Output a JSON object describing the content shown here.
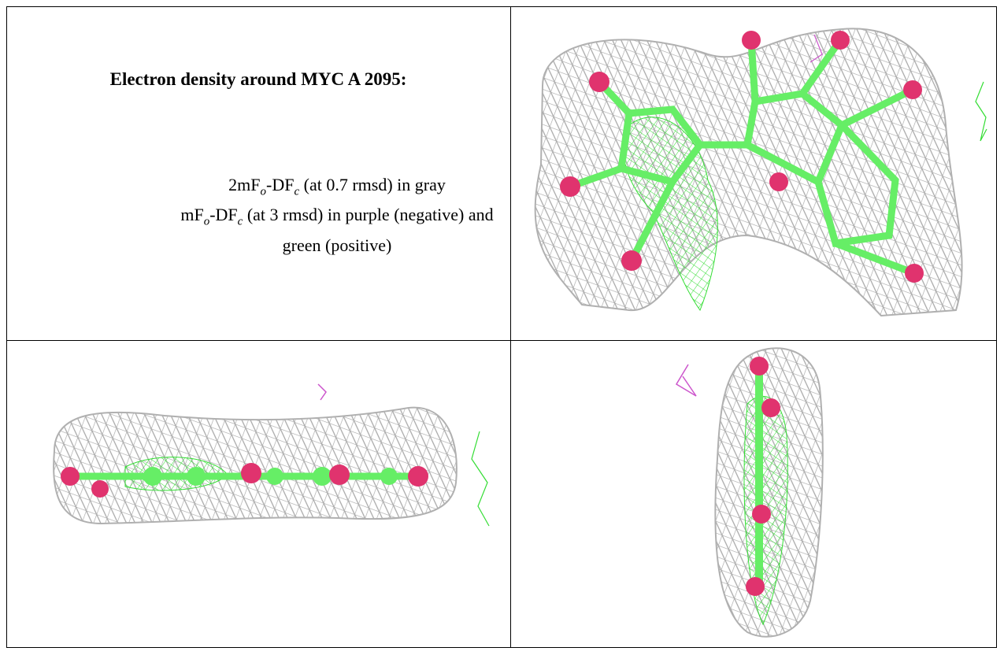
{
  "caption": {
    "title": "Electron density around MYC A 2095:",
    "lines": [
      {
        "parts": [
          "2mF",
          "o",
          "-DF",
          "c",
          " (at 0.7 rmsd) in gray"
        ]
      },
      {
        "parts": [
          "mF",
          "o",
          "-DF",
          "c",
          " (at 3 rmsd) in purple (negative) and green (positive)"
        ]
      }
    ]
  }
}
